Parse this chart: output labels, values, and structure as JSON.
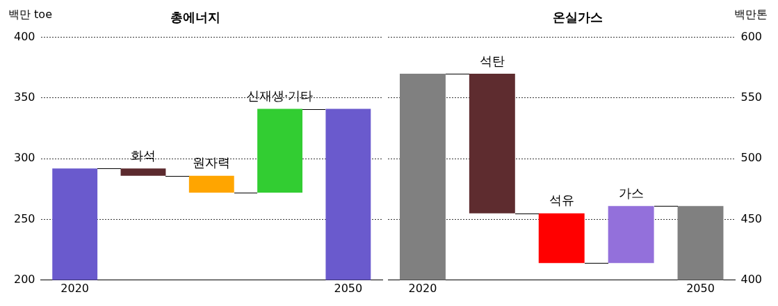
{
  "chart_data": [
    {
      "type": "bar",
      "title": "총에너지",
      "ylabel": "백만 toe",
      "categories": [
        "2020",
        "화석",
        "원자력",
        "신재생·기타",
        "2050"
      ],
      "series": [
        {
          "values": [
            92,
            6,
            14,
            69,
            141
          ],
          "base": [
            200,
            286,
            272,
            272,
            200
          ],
          "colors": [
            "#6a5acd",
            "#5c2a2e",
            "#ffa500",
            "#32cd32",
            "#6a5acd"
          ]
        }
      ],
      "ylim": [
        200,
        400
      ],
      "yticks": [
        200,
        250,
        300,
        350,
        400
      ],
      "grid": "y"
    },
    {
      "type": "bar",
      "title": "온실가스",
      "y2label": "백만톤",
      "categories": [
        "2020",
        "석탄",
        "석유",
        "가스",
        "2050"
      ],
      "series": [
        {
          "values": [
            170,
            115,
            41,
            47,
            61
          ],
          "base": [
            400,
            455,
            414,
            414,
            400
          ],
          "colors": [
            "#808080",
            "#5e2c2f",
            "#ff0000",
            "#9370db",
            "#808080"
          ],
          "axis": "y2"
        }
      ],
      "y2lim": [
        400,
        600
      ],
      "y2ticks": [
        400,
        450,
        500,
        550,
        600
      ],
      "grid": "y"
    }
  ]
}
